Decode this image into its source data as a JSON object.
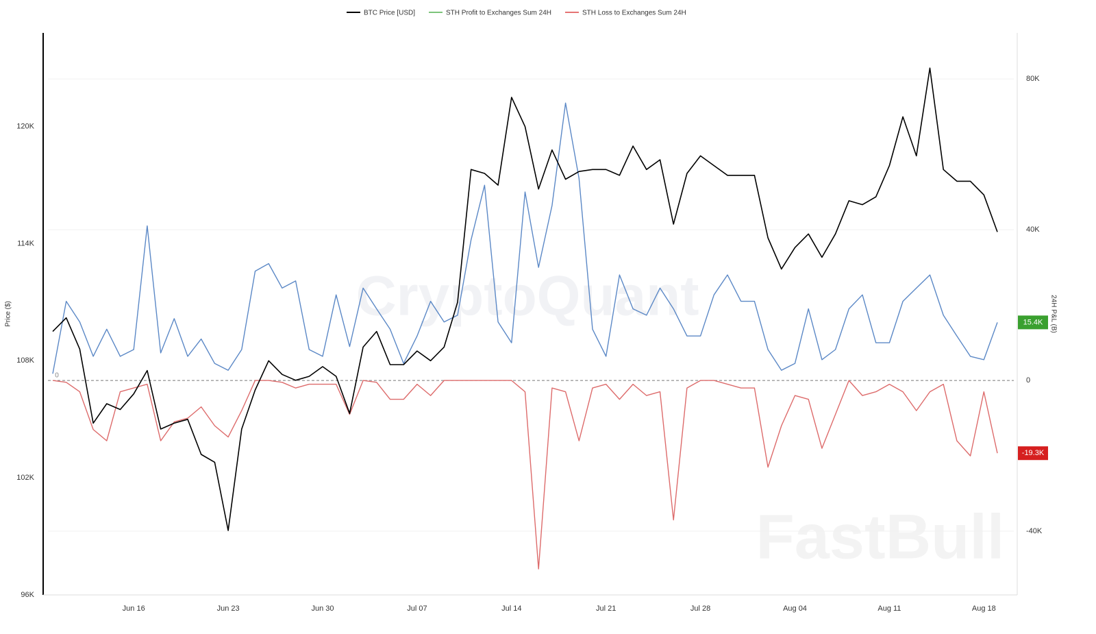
{
  "chart_data": {
    "type": "line",
    "watermarks": [
      "CryptoQuant",
      "FastBull"
    ],
    "ylabel": "Price ($)",
    "y2label": "24H P&L (B)",
    "categories": [
      null,
      null,
      null,
      null,
      null,
      null,
      "Jun 16",
      null,
      null,
      null,
      null,
      null,
      null,
      "Jun 23",
      null,
      null,
      null,
      null,
      null,
      null,
      "Jun 30",
      null,
      null,
      null,
      null,
      null,
      null,
      "Jul 07",
      null,
      null,
      null,
      null,
      null,
      null,
      "Jul 14",
      null,
      null,
      null,
      null,
      null,
      null,
      "Jul 21",
      null,
      null,
      null,
      null,
      null,
      null,
      "Jul 28",
      null,
      null,
      null,
      null,
      null,
      null,
      "Aug 04",
      null,
      null,
      null,
      null,
      null,
      null,
      "Aug 11",
      null,
      null,
      null,
      null,
      null,
      null,
      "Aug 18",
      null
    ],
    "ylim": [
      96000,
      124800
    ],
    "yticks": [
      {
        "value": 96000,
        "label": "96K"
      },
      {
        "value": 102000,
        "label": "102K"
      },
      {
        "value": 108000,
        "label": "108K"
      },
      {
        "value": 114000,
        "label": "114K"
      },
      {
        "value": 120000,
        "label": "120K"
      }
    ],
    "y2lim": [
      -56900,
      92200
    ],
    "y2ticks": [
      {
        "value": -40000,
        "label": "-40K"
      },
      0,
      {
        "value": 40000,
        "label": "40K"
      },
      {
        "value": 80000,
        "label": "80K"
      }
    ],
    "grid": true,
    "series": [
      {
        "name": "BTC Price [USD]",
        "color": "#000000",
        "line_color": "#000000",
        "values": [
          109500,
          110200,
          108600,
          104800,
          105800,
          105500,
          106300,
          107500,
          104500,
          104800,
          105000,
          103200,
          102800,
          99300,
          104500,
          106500,
          108000,
          107300,
          107000,
          107200,
          107700,
          107200,
          105300,
          108700,
          109500,
          107800,
          107800,
          108500,
          108000,
          108700,
          111000,
          117800,
          117600,
          117000,
          121500,
          120000,
          116800,
          118800,
          117300,
          117700,
          117800,
          117800,
          117500,
          119000,
          117800,
          118300,
          115000,
          117600,
          118500,
          118000,
          117500,
          117500,
          117500,
          114300,
          112700,
          113800,
          114500,
          113300,
          114500,
          116200,
          116000,
          116400,
          118000,
          120500,
          118500,
          123000,
          117800,
          117200,
          117200,
          116500,
          114600
        ]
      },
      {
        "name": "STH Profit to Exchanges Sum 24H",
        "color": "#7cc47a",
        "line_color": "#5b88c6",
        "axis": "y2",
        "badge_color": "#3aa02f",
        "values": [
          1800,
          21000,
          15500,
          6400,
          13600,
          6400,
          8200,
          41000,
          7300,
          16400,
          6400,
          11000,
          4500,
          2700,
          8200,
          29000,
          31000,
          24500,
          26400,
          8200,
          6400,
          22700,
          9000,
          24500,
          19000,
          13600,
          4500,
          11800,
          21000,
          15500,
          17300,
          37300,
          51800,
          15500,
          10000,
          50000,
          30000,
          46400,
          73600,
          53600,
          13600,
          6400,
          28000,
          19000,
          17300,
          24500,
          19000,
          11800,
          11800,
          22700,
          28000,
          21000,
          21000,
          8200,
          2700,
          4500,
          19000,
          5500,
          8200,
          19000,
          22700,
          10000,
          10000,
          21000,
          24500,
          28000,
          17300,
          11800,
          6400,
          5500,
          15400
        ],
        "value_labels": [
          null,
          null,
          null,
          null,
          null,
          null,
          null,
          null,
          null,
          null,
          null,
          null,
          null,
          null,
          null,
          null,
          null,
          null,
          null,
          null,
          null,
          null,
          null,
          null,
          null,
          null,
          null,
          null,
          null,
          null,
          null,
          null,
          null,
          null,
          null,
          null,
          null,
          null,
          null,
          null,
          null,
          null,
          null,
          null,
          null,
          null,
          null,
          null,
          null,
          null,
          null,
          null,
          null,
          null,
          null,
          null,
          null,
          null,
          null,
          null,
          null,
          null,
          null,
          null,
          null,
          null,
          null,
          null,
          null,
          null,
          "15.4K"
        ]
      },
      {
        "name": "STH Loss to Exchanges Sum 24H",
        "color": "#e57373",
        "line_color": "#dd6b6b",
        "axis": "y2",
        "badge_color": "#d61f1f",
        "values": [
          0,
          -500,
          -3000,
          -13000,
          -16000,
          -3000,
          -2000,
          -1000,
          -16000,
          -11000,
          -10000,
          -7000,
          -12000,
          -15000,
          -8000,
          0,
          0,
          -500,
          -2000,
          -1000,
          -1000,
          -1000,
          -9000,
          0,
          -500,
          -5000,
          -5000,
          -1000,
          -4000,
          0,
          0,
          0,
          0,
          0,
          0,
          -3000,
          -50000,
          -2000,
          -3000,
          -16000,
          -2000,
          -1000,
          -5000,
          -1000,
          -4000,
          -3000,
          -37000,
          -2000,
          0,
          0,
          -1000,
          -2000,
          -2000,
          -23000,
          -12000,
          -4000,
          -5000,
          -18000,
          -9000,
          0,
          -4000,
          -3000,
          -1000,
          -3000,
          -8000,
          -3000,
          -1000,
          -16000,
          -20000,
          -3000,
          -19300
        ],
        "value_labels": [
          null,
          null,
          null,
          null,
          null,
          null,
          null,
          null,
          null,
          null,
          null,
          null,
          null,
          null,
          null,
          null,
          null,
          null,
          null,
          null,
          null,
          null,
          null,
          null,
          null,
          null,
          null,
          null,
          null,
          null,
          null,
          null,
          null,
          null,
          null,
          null,
          null,
          null,
          null,
          null,
          null,
          null,
          null,
          null,
          null,
          null,
          null,
          null,
          null,
          null,
          null,
          null,
          null,
          null,
          null,
          null,
          null,
          null,
          null,
          null,
          null,
          null,
          null,
          null,
          null,
          null,
          null,
          null,
          null,
          null,
          "-19.3K"
        ]
      }
    ]
  }
}
